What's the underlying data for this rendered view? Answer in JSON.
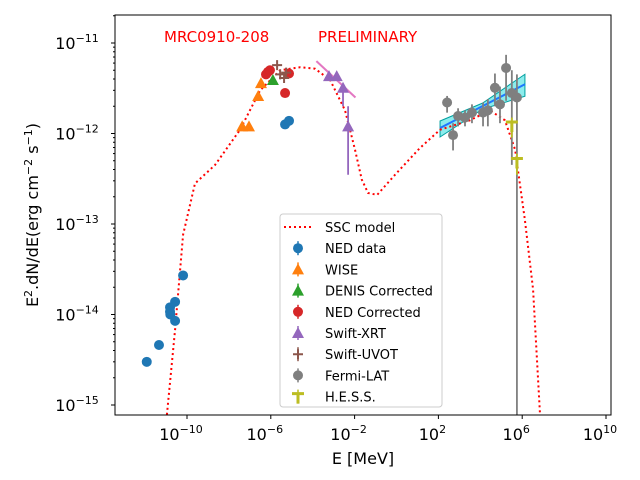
{
  "chart_data": {
    "type": "scatter",
    "xlabel": "E [MeV]",
    "ylabel": "E2.dN/dE(erg cm-2 s-1)",
    "xscale": "log",
    "yscale": "log",
    "xlim": [
      4e-14,
      16000000000.0
    ],
    "ylim": [
      7.8e-16,
      2e-11
    ],
    "xticks": [
      "10^-10",
      "10^-6",
      "10^-2",
      "10^2",
      "10^6",
      "10^10"
    ],
    "xtick_values": [
      1e-10,
      1e-06,
      0.01,
      100.0,
      1000000.0,
      10000000000.0
    ],
    "yticks": [
      "10^-11",
      "10^-12",
      "10^-13",
      "10^-14",
      "10^-15"
    ],
    "ytick_values": [
      1e-11,
      1e-12,
      1e-13,
      1e-14,
      1e-15
    ],
    "annotations": [
      {
        "text": "MRC0910-208",
        "color": "#ff0000"
      },
      {
        "text": "PRELIMINARY",
        "color": "#ff0000"
      }
    ],
    "legend_position": "lower-center",
    "grid": false,
    "model": {
      "name": "SSC model",
      "color": "#ff0000",
      "style": "dotted",
      "x": [
        1.1e-11,
        2.7e-11,
        6.5e-11,
        2.4e-10,
        2.2e-09,
        3.4e-08,
        3.1e-07,
        2.8e-06,
        2.5e-05,
        0.00013,
        0.00068,
        0.0035,
        0.0105,
        0.022,
        0.044,
        0.12,
        0.85,
        13,
        120,
        3200,
        29000.0,
        150000.0,
        460000.0,
        1350000.0,
        3300000.0,
        7100000.0
      ],
      "y": [
        7.8e-16,
        6.8e-15,
        7.6e-14,
        2.8e-13,
        4.5e-13,
        1.1e-12,
        3e-12,
        5e-12,
        5.4e-12,
        5.2e-12,
        3.9e-12,
        1.8e-12,
        6.6e-13,
        3.1e-13,
        2.2e-13,
        2.1e-13,
        3.5e-13,
        6.9e-13,
        1.1e-12,
        1.4e-12,
        1.8e-12,
        1.4e-12,
        6.6e-13,
        1.1e-13,
        1.9e-14,
        7.8e-16
      ]
    },
    "series": [
      {
        "name": "NED data",
        "color": "#1f77b4",
        "marker": "circle",
        "x": [
          1.2e-12,
          4.6e-12,
          1.55e-11,
          1.55e-11,
          1.6e-11,
          2.7e-11,
          2.7e-11,
          6.5e-11,
          4.8e-06,
          7.4e-06
        ],
        "y": [
          3e-15,
          4.6e-15,
          1.2e-14,
          1.07e-14,
          1e-14,
          1.38e-14,
          8.5e-15,
          2.7e-14,
          1.26e-12,
          1.38e-12
        ]
      },
      {
        "name": "WISE",
        "color": "#ff7f0e",
        "marker": "triangle",
        "x": [
          4.3e-08,
          9.1e-08,
          2.5e-07,
          3.4e-07
        ],
        "y": [
          1.2e-12,
          1.2e-12,
          2.6e-12,
          3.6e-12
        ]
      },
      {
        "name": "DENIS Corrected",
        "color": "#2ca02c",
        "marker": "triangle",
        "x": [
          1.26e-06
        ],
        "y": [
          3.9e-12
        ]
      },
      {
        "name": "NED Corrected",
        "color": "#d62728",
        "marker": "circle",
        "x": [
          5.9e-07,
          7.4e-07,
          9.1e-07,
          4.8e-06,
          7.4e-06
        ],
        "y": [
          4.5e-12,
          4.8e-12,
          5e-12,
          2.8e-12,
          4.6e-12
        ]
      },
      {
        "name": "Swift-XRT",
        "color": "#9467bd",
        "marker": "triangle",
        "x": [
          0.0006,
          0.0014,
          0.0028,
          0.0049
        ],
        "y": [
          4.3e-12,
          4.3e-12,
          3.2e-12,
          1.2e-12
        ],
        "ylo": [
          null,
          null,
          2e-12,
          3.5e-13
        ],
        "yhi": [
          null,
          null,
          null,
          2e-12
        ]
      },
      {
        "name": "Swift-UVOT",
        "color": "#8c564b",
        "marker": "plus",
        "x": [
          2e-06,
          2.8e-06,
          4.3e-06,
          5.4e-06
        ],
        "y": [
          5.7e-12,
          4.5e-12,
          4.1e-12,
          4.7e-12
        ]
      },
      {
        "name": "Fermi-LAT",
        "color": "#7f7f7f",
        "marker": "circle",
        "x": [
          260,
          500,
          870,
          1860,
          4000,
          13500.0,
          23000.0,
          50000.0,
          87000.0,
          170000.0,
          320000.0,
          560000.0
        ],
        "y": [
          2.2e-12,
          9.6e-13,
          1.56e-12,
          1.5e-12,
          1.7e-12,
          1.7e-12,
          1.8e-12,
          3.2e-12,
          2.1e-12,
          5.3e-12,
          2.8e-12,
          2.5e-12
        ],
        "ylo": [
          1.7e-12,
          6.5e-13,
          1.2e-12,
          1.2e-12,
          1.3e-12,
          1.2e-12,
          1.2e-12,
          2e-12,
          1.3e-12,
          2.3e-12,
          4.5e-13,
          7.8e-16
        ],
        "yhi": [
          2.6e-12,
          1.3e-12,
          1.9e-12,
          1.8e-12,
          2.1e-12,
          2.2e-12,
          2.4e-12,
          4.6e-12,
          3.3e-12,
          7.4e-12,
          5e-12,
          4.5e-12
        ]
      },
      {
        "name": "H.E.S.S.",
        "color": "#bcbd22",
        "marker": "tri_down",
        "x": [
          320000.0,
          560000.0
        ],
        "y": [
          1.24e-12,
          4.9e-13
        ],
        "ylo": [
          9e-13,
          3.5e-13
        ],
        "yhi": [
          1.5e-12,
          6e-13
        ]
      }
    ],
    "bowties": [
      {
        "label": "Swift-XRT",
        "color": "#e377c2",
        "x": [
          0.00015,
          0.011
        ],
        "y": [
          6.3e-12,
          2.5e-12
        ]
      },
      {
        "label": "Fermi-LAT",
        "color": "#1f77ff",
        "fill": "#00d5d5",
        "x": [
          120,
          1350000.0
        ],
        "y": [
          1.15e-12,
          3.5e-12
        ]
      }
    ],
    "legend": [
      "SSC model",
      "NED data",
      "WISE",
      "DENIS Corrected",
      "NED Corrected",
      "Swift-XRT",
      "Swift-UVOT",
      "Fermi-LAT",
      "H.E.S.S."
    ]
  }
}
